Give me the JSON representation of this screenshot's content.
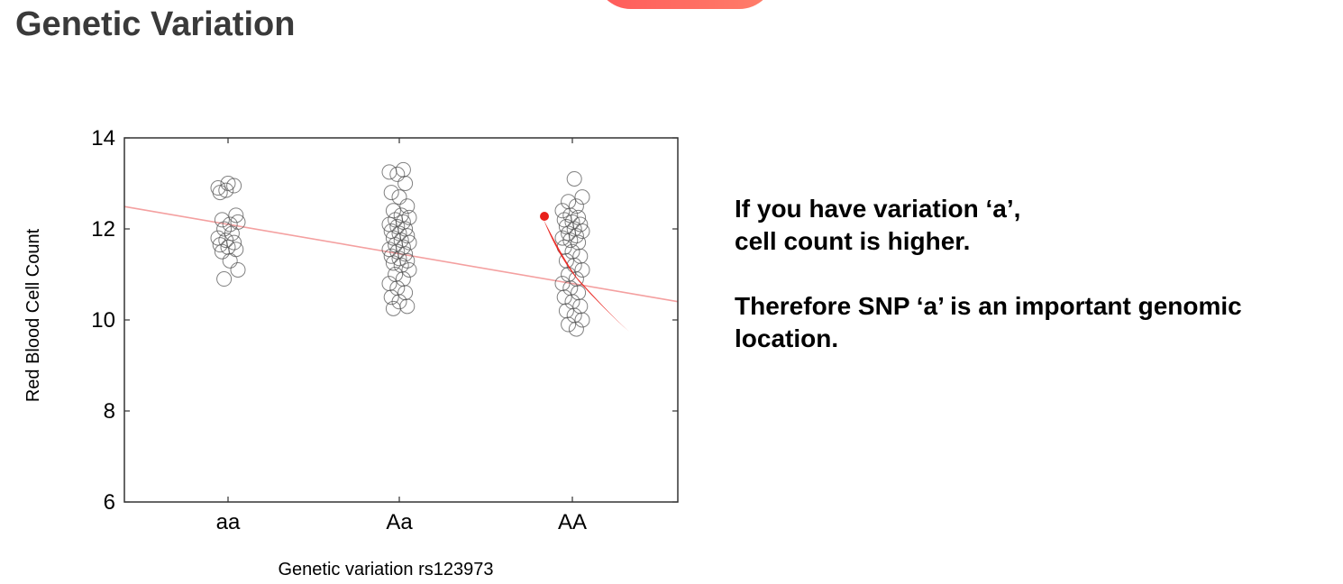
{
  "slide": {
    "title": "Genetic Variation",
    "accent_color": "#ff5a5a"
  },
  "text": {
    "para1_line1": "If you have variation ‘a’,",
    "para1_line2": "cell count is higher.",
    "para2_line1": "Therefore SNP ‘a’ is an important genomic",
    "para2_line2": "location."
  },
  "chart_data": {
    "type": "scatter",
    "title": "",
    "xlabel": "Genetic variation rs123973",
    "ylabel": "Red Blood Cell Count",
    "categories": [
      "aa",
      "Aa",
      "AA"
    ],
    "ylim": [
      6,
      14
    ],
    "yticks": [
      6,
      8,
      10,
      12,
      14
    ],
    "grid": false,
    "legend": "none",
    "marker": "open circle",
    "marker_color": "#555555",
    "trend_color": "#f4a0a0",
    "annotation_color": "#e8201a",
    "series": [
      {
        "name": "",
        "points": [
          {
            "c": 0,
            "y": 12.9
          },
          {
            "c": 0,
            "y": 12.85
          },
          {
            "c": 0,
            "y": 12.95
          },
          {
            "c": 0,
            "y": 12.8
          },
          {
            "c": 0,
            "y": 13.0
          },
          {
            "c": 0,
            "y": 12.3
          },
          {
            "c": 0,
            "y": 12.2
          },
          {
            "c": 0,
            "y": 12.1
          },
          {
            "c": 0,
            "y": 12.15
          },
          {
            "c": 0,
            "y": 12.0
          },
          {
            "c": 0,
            "y": 11.9
          },
          {
            "c": 0,
            "y": 11.8
          },
          {
            "c": 0,
            "y": 11.75
          },
          {
            "c": 0,
            "y": 11.7
          },
          {
            "c": 0,
            "y": 11.65
          },
          {
            "c": 0,
            "y": 11.6
          },
          {
            "c": 0,
            "y": 11.55
          },
          {
            "c": 0,
            "y": 11.5
          },
          {
            "c": 0,
            "y": 11.3
          },
          {
            "c": 0,
            "y": 11.1
          },
          {
            "c": 0,
            "y": 10.9
          },
          {
            "c": 1,
            "y": 13.3
          },
          {
            "c": 1,
            "y": 13.25
          },
          {
            "c": 1,
            "y": 13.2
          },
          {
            "c": 1,
            "y": 13.0
          },
          {
            "c": 1,
            "y": 12.8
          },
          {
            "c": 1,
            "y": 12.7
          },
          {
            "c": 1,
            "y": 12.5
          },
          {
            "c": 1,
            "y": 12.4
          },
          {
            "c": 1,
            "y": 12.3
          },
          {
            "c": 1,
            "y": 12.25
          },
          {
            "c": 1,
            "y": 12.2
          },
          {
            "c": 1,
            "y": 12.15
          },
          {
            "c": 1,
            "y": 12.1
          },
          {
            "c": 1,
            "y": 12.05
          },
          {
            "c": 1,
            "y": 12.0
          },
          {
            "c": 1,
            "y": 11.95
          },
          {
            "c": 1,
            "y": 11.9
          },
          {
            "c": 1,
            "y": 11.85
          },
          {
            "c": 1,
            "y": 11.8
          },
          {
            "c": 1,
            "y": 11.75
          },
          {
            "c": 1,
            "y": 11.7
          },
          {
            "c": 1,
            "y": 11.65
          },
          {
            "c": 1,
            "y": 11.6
          },
          {
            "c": 1,
            "y": 11.55
          },
          {
            "c": 1,
            "y": 11.5
          },
          {
            "c": 1,
            "y": 11.45
          },
          {
            "c": 1,
            "y": 11.4
          },
          {
            "c": 1,
            "y": 11.35
          },
          {
            "c": 1,
            "y": 11.3
          },
          {
            "c": 1,
            "y": 11.25
          },
          {
            "c": 1,
            "y": 11.2
          },
          {
            "c": 1,
            "y": 11.1
          },
          {
            "c": 1,
            "y": 11.0
          },
          {
            "c": 1,
            "y": 10.9
          },
          {
            "c": 1,
            "y": 10.8
          },
          {
            "c": 1,
            "y": 10.7
          },
          {
            "c": 1,
            "y": 10.6
          },
          {
            "c": 1,
            "y": 10.5
          },
          {
            "c": 1,
            "y": 10.4
          },
          {
            "c": 1,
            "y": 10.3
          },
          {
            "c": 1,
            "y": 10.25
          },
          {
            "c": 2,
            "y": 13.1
          },
          {
            "c": 2,
            "y": 12.7
          },
          {
            "c": 2,
            "y": 12.6
          },
          {
            "c": 2,
            "y": 12.5
          },
          {
            "c": 2,
            "y": 12.4
          },
          {
            "c": 2,
            "y": 12.3
          },
          {
            "c": 2,
            "y": 12.25
          },
          {
            "c": 2,
            "y": 12.2
          },
          {
            "c": 2,
            "y": 12.15
          },
          {
            "c": 2,
            "y": 12.1
          },
          {
            "c": 2,
            "y": 12.05
          },
          {
            "c": 2,
            "y": 12.0
          },
          {
            "c": 2,
            "y": 11.95
          },
          {
            "c": 2,
            "y": 11.9
          },
          {
            "c": 2,
            "y": 11.85
          },
          {
            "c": 2,
            "y": 11.8
          },
          {
            "c": 2,
            "y": 11.75
          },
          {
            "c": 2,
            "y": 11.7
          },
          {
            "c": 2,
            "y": 11.6
          },
          {
            "c": 2,
            "y": 11.5
          },
          {
            "c": 2,
            "y": 11.4
          },
          {
            "c": 2,
            "y": 11.3
          },
          {
            "c": 2,
            "y": 11.2
          },
          {
            "c": 2,
            "y": 11.1
          },
          {
            "c": 2,
            "y": 11.0
          },
          {
            "c": 2,
            "y": 10.9
          },
          {
            "c": 2,
            "y": 10.8
          },
          {
            "c": 2,
            "y": 10.7
          },
          {
            "c": 2,
            "y": 10.6
          },
          {
            "c": 2,
            "y": 10.5
          },
          {
            "c": 2,
            "y": 10.4
          },
          {
            "c": 2,
            "y": 10.3
          },
          {
            "c": 2,
            "y": 10.2
          },
          {
            "c": 2,
            "y": 10.1
          },
          {
            "c": 2,
            "y": 10.0
          },
          {
            "c": 2,
            "y": 9.9
          },
          {
            "c": 2,
            "y": 9.8
          }
        ]
      }
    ],
    "trend_line": {
      "y_at_aa": 12.1,
      "y_at_AA": 10.8
    }
  }
}
